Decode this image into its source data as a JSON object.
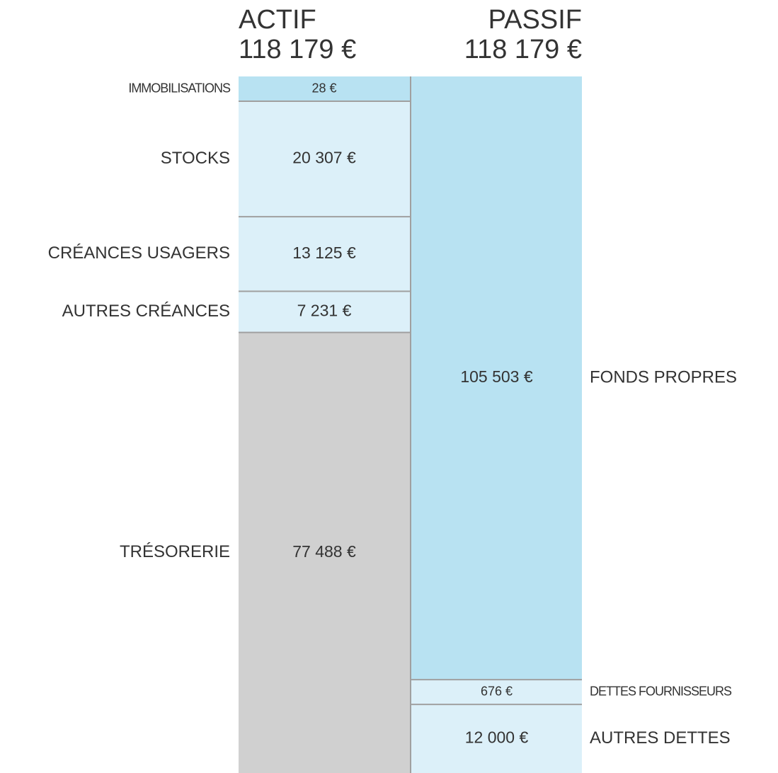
{
  "chart_data": {
    "type": "balance",
    "columns": [
      {
        "title": "ACTIF",
        "total": 118179,
        "total_label": "118 179 €",
        "segments": [
          {
            "name": "IMMOBILISATIONS",
            "value": 28,
            "value_label": "28 €",
            "color": "#b8e2f2"
          },
          {
            "name": "STOCKS",
            "value": 20307,
            "value_label": "20 307 €",
            "color": "#dcf0f9"
          },
          {
            "name": "CRÉANCES USAGERS",
            "value": 13125,
            "value_label": "13 125 €",
            "color": "#dcf0f9"
          },
          {
            "name": "AUTRES CRÉANCES",
            "value": 7231,
            "value_label": "7 231 €",
            "color": "#dcf0f9"
          },
          {
            "name": "TRÉSORERIE",
            "value": 77488,
            "value_label": "77 488 €",
            "color": "#d0d0d0"
          }
        ]
      },
      {
        "title": "PASSIF",
        "total": 118179,
        "total_label": "118 179 €",
        "segments": [
          {
            "name": "FONDS PROPRES",
            "value": 105503,
            "value_label": "105 503 €",
            "color": "#b8e2f2"
          },
          {
            "name": "DETTES FOURNISSEURS",
            "value": 676,
            "value_label": "676 €",
            "color": "#dcf0f9"
          },
          {
            "name": "AUTRES DETTES",
            "value": 12000,
            "value_label": "12 000 €",
            "color": "#dcf0f9"
          }
        ]
      }
    ]
  }
}
